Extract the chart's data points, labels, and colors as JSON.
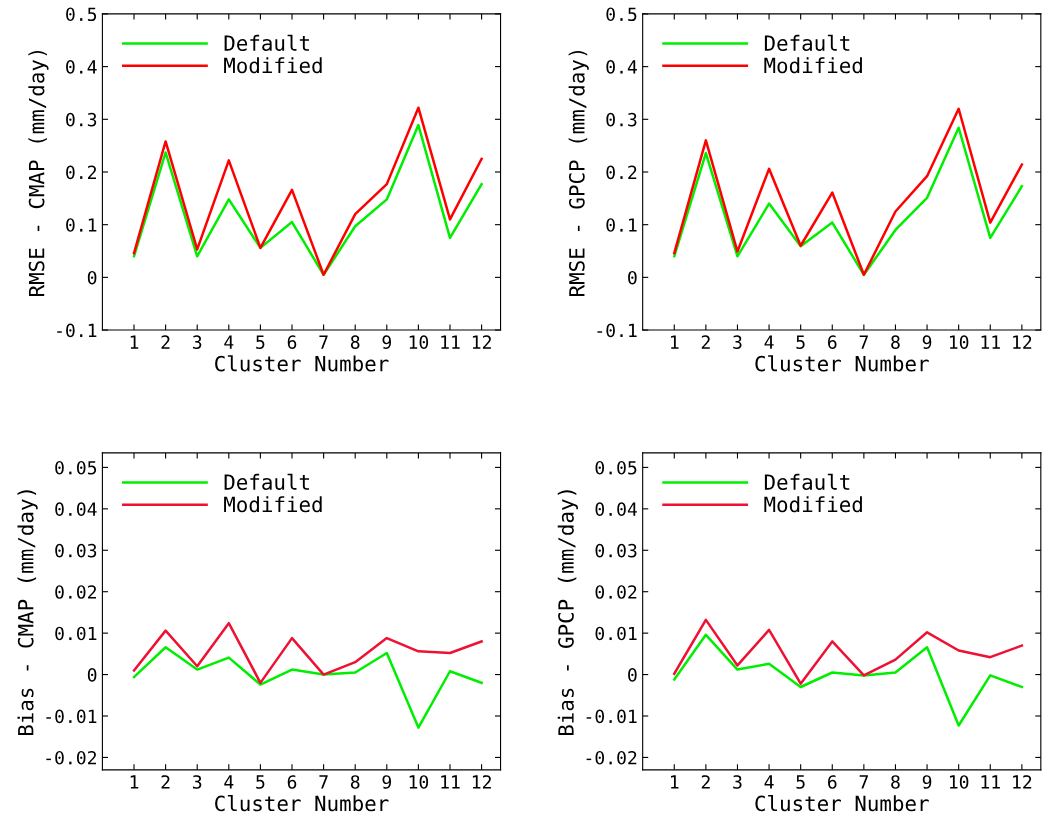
{
  "chart_data": [
    {
      "type": "line",
      "xlabel": "Cluster Number",
      "ylabel": "RMSE - CMAP (mm/day)",
      "x": [
        1,
        2,
        3,
        4,
        5,
        6,
        7,
        8,
        9,
        10,
        11,
        12
      ],
      "xlim": [
        0,
        12.6
      ],
      "xticks": [
        1,
        2,
        3,
        4,
        5,
        6,
        7,
        8,
        9,
        10,
        11,
        12
      ],
      "ylim": [
        -0.1,
        0.5
      ],
      "yticks": [
        {
          "value": -0.1,
          "label": "-0.1"
        },
        0,
        0.1,
        0.2,
        0.3,
        0.4,
        0.5
      ],
      "legend": "top left",
      "grid": false,
      "series": [
        {
          "name": "Default",
          "color": "#00ee00",
          "values": [
            0.04,
            0.237,
            0.04,
            0.148,
            0.056,
            0.105,
            0.005,
            0.097,
            0.148,
            0.289,
            0.075,
            0.177
          ]
        },
        {
          "name": "Modified",
          "color": "#ff0000",
          "values": [
            0.046,
            0.258,
            0.053,
            0.222,
            0.056,
            0.166,
            0.005,
            0.12,
            0.177,
            0.322,
            0.11,
            0.225
          ]
        }
      ]
    },
    {
      "type": "line",
      "xlabel": "Cluster Number",
      "ylabel": "RMSE - GPCP (mm/day)",
      "x": [
        1,
        2,
        3,
        4,
        5,
        6,
        7,
        8,
        9,
        10,
        11,
        12
      ],
      "xlim": [
        0,
        12.6
      ],
      "xticks": [
        1,
        2,
        3,
        4,
        5,
        6,
        7,
        8,
        9,
        10,
        11,
        12
      ],
      "ylim": [
        -0.1,
        0.5
      ],
      "yticks": [
        {
          "value": -0.1,
          "label": "-0.1"
        },
        0,
        0.1,
        0.2,
        0.3,
        0.4,
        0.5
      ],
      "legend": "top left",
      "grid": false,
      "series": [
        {
          "name": "Default",
          "color": "#00ee00",
          "values": [
            0.04,
            0.236,
            0.04,
            0.14,
            0.059,
            0.104,
            0.005,
            0.09,
            0.151,
            0.284,
            0.075,
            0.173
          ]
        },
        {
          "name": "Modified",
          "color": "#ff0000",
          "values": [
            0.046,
            0.26,
            0.049,
            0.206,
            0.06,
            0.161,
            0.005,
            0.125,
            0.192,
            0.32,
            0.104,
            0.214
          ]
        }
      ]
    },
    {
      "type": "line",
      "xlabel": "Cluster Number",
      "ylabel": "Bias - CMAP (mm/day)",
      "x": [
        1,
        2,
        3,
        4,
        5,
        6,
        7,
        8,
        9,
        10,
        11,
        12
      ],
      "xlim": [
        0,
        12.6
      ],
      "xticks": [
        1,
        2,
        3,
        4,
        5,
        6,
        7,
        8,
        9,
        10,
        11,
        12
      ],
      "ylim": [
        -0.023,
        0.0535
      ],
      "yticks": [
        {
          "value": -0.02,
          "label": "-0.02"
        },
        {
          "value": -0.01,
          "label": "-0.01"
        },
        0,
        0.01,
        0.02,
        0.03,
        0.04,
        0.05
      ],
      "legend": "top left",
      "grid": false,
      "series": [
        {
          "name": "Default",
          "color": "#00ee00",
          "values": [
            -0.0006,
            0.0066,
            0.0012,
            0.0041,
            -0.0024,
            0.0012,
            0.0,
            0.0005,
            0.0052,
            -0.0128,
            0.0008,
            -0.002
          ]
        },
        {
          "name": "Modified",
          "color": "#ee1133",
          "values": [
            0.001,
            0.0106,
            0.002,
            0.0124,
            -0.002,
            0.0088,
            0.0,
            0.003,
            0.0088,
            0.0056,
            0.0052,
            0.008
          ]
        }
      ]
    },
    {
      "type": "line",
      "xlabel": "Cluster Number",
      "ylabel": "Bias - GPCP (mm/day)",
      "x": [
        1,
        2,
        3,
        4,
        5,
        6,
        7,
        8,
        9,
        10,
        11,
        12
      ],
      "xlim": [
        0,
        12.6
      ],
      "xticks": [
        1,
        2,
        3,
        4,
        5,
        6,
        7,
        8,
        9,
        10,
        11,
        12
      ],
      "ylim": [
        -0.023,
        0.0535
      ],
      "yticks": [
        {
          "value": -0.02,
          "label": "-0.02"
        },
        {
          "value": -0.01,
          "label": "-0.01"
        },
        0,
        0.01,
        0.02,
        0.03,
        0.04,
        0.05
      ],
      "legend": "top left",
      "grid": false,
      "series": [
        {
          "name": "Default",
          "color": "#00ee00",
          "values": [
            -0.0012,
            0.0096,
            0.0012,
            0.0026,
            -0.003,
            0.0005,
            -0.0002,
            0.0005,
            0.0066,
            -0.0123,
            -0.0002,
            -0.003
          ]
        },
        {
          "name": "Modified",
          "color": "#ee1133",
          "values": [
            0.0002,
            0.0132,
            0.0022,
            0.0108,
            -0.0022,
            0.008,
            -0.0002,
            0.0036,
            0.0102,
            0.0058,
            0.0042,
            0.007
          ]
        }
      ]
    }
  ]
}
